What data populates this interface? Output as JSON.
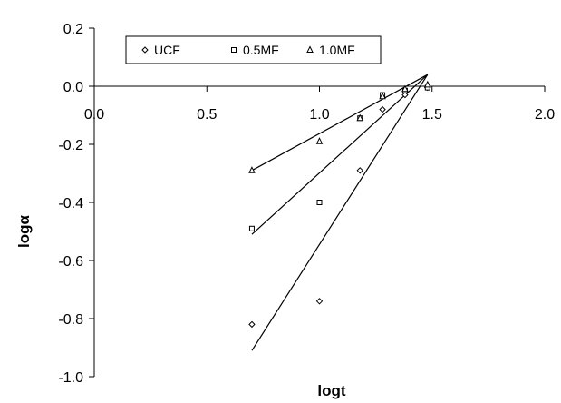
{
  "chart_data": {
    "type": "scatter",
    "title": "",
    "xlabel": "logt",
    "ylabel": "logα",
    "xlim": [
      0.0,
      2.0
    ],
    "ylim": [
      -1.0,
      0.2
    ],
    "x_ticks": [
      "0.0",
      "0.5",
      "1.0",
      "1.5",
      "2.0"
    ],
    "y_ticks": [
      "0.2",
      "0.0",
      "-0.2",
      "-0.4",
      "-0.6",
      "-0.8",
      "-1.0"
    ],
    "grid": false,
    "legend_position": "top-left",
    "series": [
      {
        "name": "UCF",
        "marker": "diamond",
        "points": [
          [
            0.7,
            -0.82
          ],
          [
            1.0,
            -0.74
          ],
          [
            1.18,
            -0.29
          ],
          [
            1.28,
            -0.08
          ],
          [
            1.38,
            -0.03
          ],
          [
            1.48,
            -0.005
          ]
        ],
        "trendline": [
          [
            0.7,
            -0.91
          ],
          [
            1.48,
            0.04
          ]
        ]
      },
      {
        "name": "0.5MF",
        "marker": "square",
        "points": [
          [
            0.7,
            -0.49
          ],
          [
            1.0,
            -0.4
          ],
          [
            1.18,
            -0.11
          ],
          [
            1.28,
            -0.03
          ],
          [
            1.38,
            -0.015
          ],
          [
            1.48,
            -0.005
          ]
        ],
        "trendline": [
          [
            0.7,
            -0.51
          ],
          [
            1.48,
            0.04
          ]
        ]
      },
      {
        "name": "1.0MF",
        "marker": "triangle",
        "points": [
          [
            0.7,
            -0.29
          ],
          [
            1.0,
            -0.19
          ],
          [
            1.18,
            -0.11
          ],
          [
            1.28,
            -0.035
          ],
          [
            1.38,
            -0.01
          ],
          [
            1.48,
            0.005
          ]
        ],
        "trendline": [
          [
            0.7,
            -0.29
          ],
          [
            1.48,
            0.04
          ]
        ]
      }
    ]
  }
}
